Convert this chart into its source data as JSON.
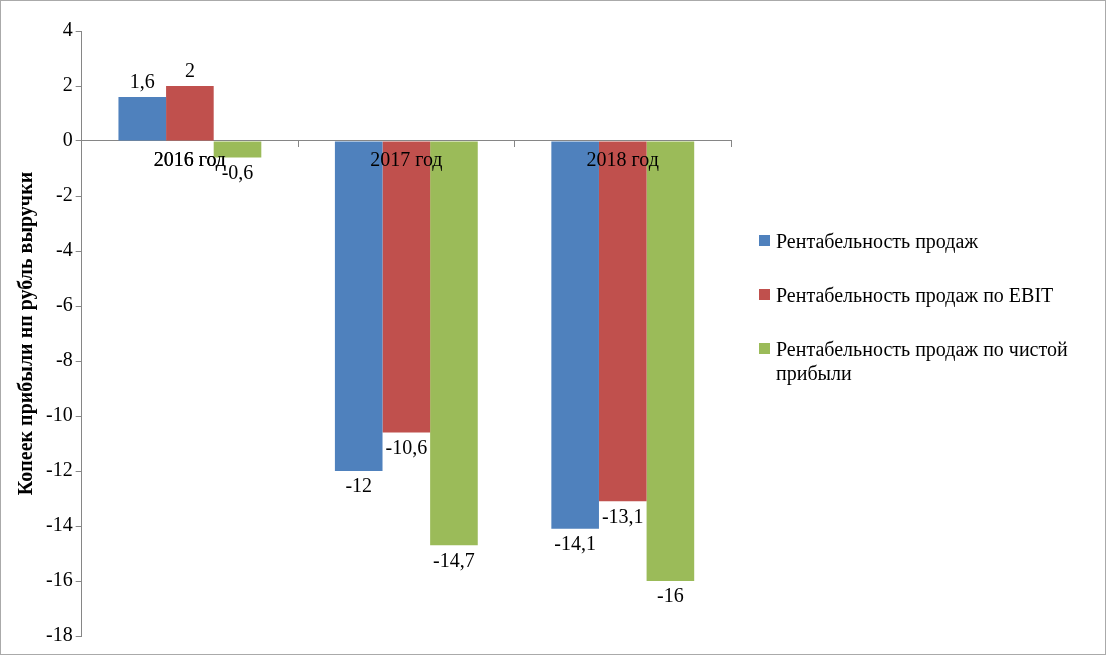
{
  "chart_data": {
    "type": "bar",
    "ylabel": "Копеек прибыли нп рубль выручки",
    "categories": [
      "2016 год",
      "2017 год",
      "2018 год"
    ],
    "series": [
      {
        "name": "Рентабельность продаж",
        "color": "#4f81bd",
        "values": [
          1.6,
          -12,
          -14.1
        ],
        "value_labels": [
          "1,6",
          "-12",
          "-14,1"
        ]
      },
      {
        "name": "Рентабельность продаж по EBIT",
        "color": "#c0504d",
        "values": [
          2,
          -10.6,
          -13.1
        ],
        "value_labels": [
          "2",
          "-10,6",
          "-13,1"
        ]
      },
      {
        "name": "Рентабельность продаж по чистой прибыли",
        "color": "#9bbb59",
        "values": [
          -0.6,
          -14.7,
          -16
        ],
        "value_labels": [
          "-0,6",
          "-14,7",
          "-16"
        ]
      }
    ],
    "ylim": [
      -18,
      4
    ],
    "yticks": [
      -18,
      -16,
      -14,
      -12,
      -10,
      -8,
      -6,
      -4,
      -2,
      0,
      2,
      4
    ],
    "grid": false,
    "legend": "right"
  }
}
